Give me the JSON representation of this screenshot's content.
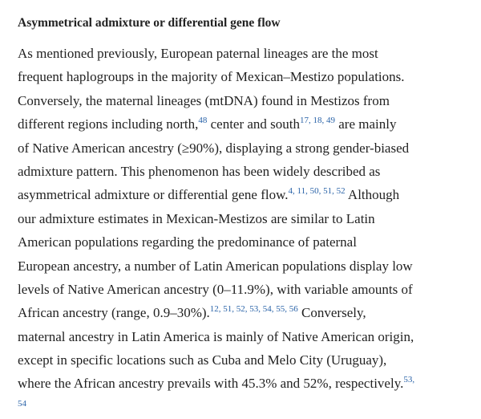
{
  "heading": "Asymmetrical admixture or differential gene flow",
  "paragraph": {
    "lines": [
      [
        "As mentioned previously, European paternal lineages are the most"
      ],
      [
        "frequent haplogroups in the majority of Mexican–Mestizo populations."
      ],
      [
        "Conversely, the maternal lineages (mtDNA) found in Mestizos from"
      ],
      [
        "different regions including north,",
        {
          "ref": "48"
        },
        " center and south",
        {
          "ref": "17, 18, 49"
        },
        " are mainly"
      ],
      [
        "of Native American ancestry (≥90%), displaying a strong gender-biased"
      ],
      [
        "admixture pattern. This phenomenon has been widely described as"
      ],
      [
        "asymmetrical admixture or differential gene flow.",
        {
          "ref": "4, 11, 50, 51, 52"
        },
        " Although"
      ],
      [
        "our admixture estimates in Mexican-Mestizos are similar to Latin"
      ],
      [
        "American populations regarding the predominance of paternal"
      ],
      [
        "European ancestry, a number of Latin American populations display low"
      ],
      [
        "levels of Native American ancestry (0–11.9%), with variable amounts of"
      ],
      [
        "African ancestry (range, 0.9–30%).",
        {
          "ref": "12, 51, 52, 53, 54, 55, 56"
        },
        " Conversely,"
      ],
      [
        "maternal ancestry in Latin America is mainly of Native American origin,"
      ],
      [
        "except in specific locations such as Cuba and Melo City (Uruguay),"
      ],
      [
        "where the African ancestry prevails with 45.3% and 52%, respectively.",
        {
          "ref": "53,"
        }
      ],
      [
        {
          "ref": "54"
        }
      ]
    ]
  }
}
